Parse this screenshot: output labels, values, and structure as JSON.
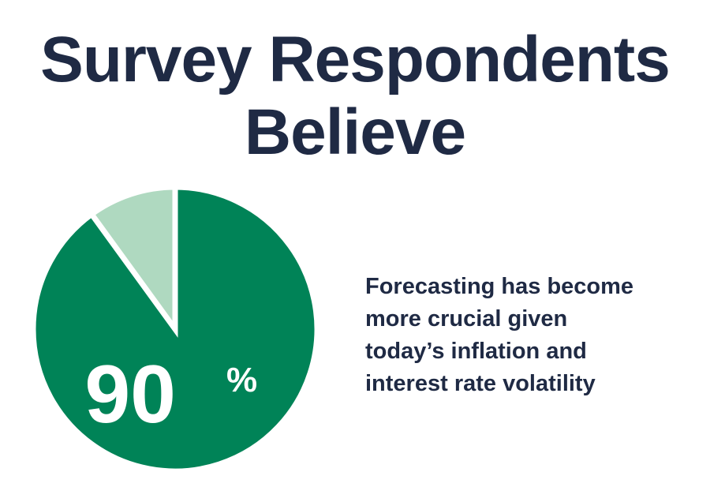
{
  "title_lines": [
    "Survey Respondents",
    "Believe"
  ],
  "caption_lines": [
    "Forecasting has become",
    "more crucial given",
    "today’s inflation and",
    "interest rate volatility"
  ],
  "colors": {
    "text": "#1f2a44",
    "primary_slice": "#008357",
    "secondary_slice": "#afd9c0",
    "label": "#ffffff"
  },
  "chart_data": {
    "type": "pie",
    "slices": [
      {
        "value": 90,
        "color": "#008357"
      },
      {
        "value": 10,
        "color": "#afd9c0"
      }
    ],
    "label": {
      "value": "90",
      "unit": "%"
    }
  }
}
